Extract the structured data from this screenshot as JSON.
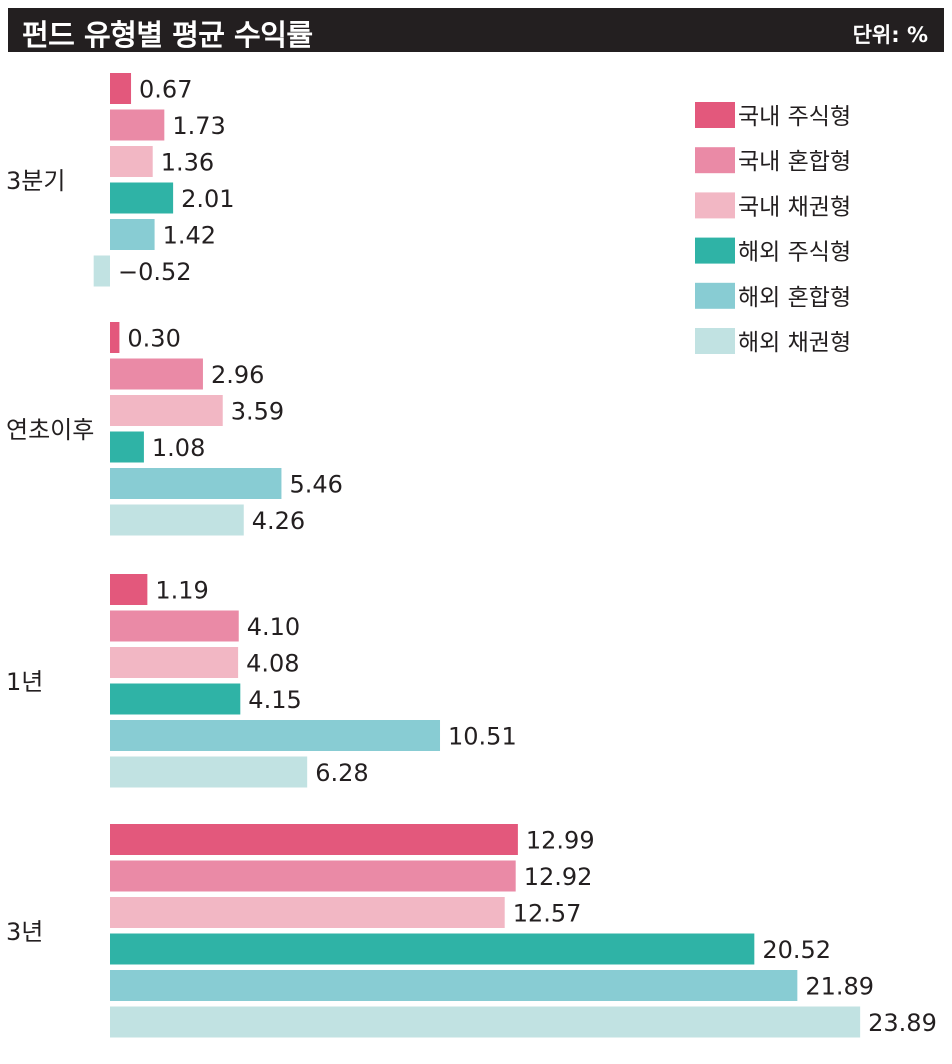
{
  "header": {
    "title": "펀드 유형별 평균 수익률",
    "unit": "단위: %"
  },
  "chart_data": {
    "type": "bar",
    "orientation": "horizontal",
    "title": "펀드 유형별 평균 수익률",
    "unit": "단위: %",
    "categories": [
      "3분기",
      "연초이후",
      "1년",
      "3년"
    ],
    "series": [
      {
        "name": "국내 주식형",
        "color": "#e3587c",
        "values": [
          0.67,
          0.3,
          1.19,
          12.99
        ],
        "labels": [
          "0.67",
          "0.30",
          "1.19",
          "12.99"
        ]
      },
      {
        "name": "국내 혼합형",
        "color": "#ea8aa6",
        "values": [
          1.73,
          2.96,
          4.1,
          12.92
        ],
        "labels": [
          "1.73",
          "2.96",
          "4.10",
          "12.92"
        ]
      },
      {
        "name": "국내 채권형",
        "color": "#f2b7c4",
        "values": [
          1.36,
          3.59,
          4.08,
          12.57
        ],
        "labels": [
          "1.36",
          "3.59",
          "4.08",
          "12.57"
        ]
      },
      {
        "name": "해외 주식형",
        "color": "#2fb3a6",
        "values": [
          2.01,
          1.08,
          4.15,
          20.52
        ],
        "labels": [
          "2.01",
          "1.08",
          "4.15",
          "20.52"
        ]
      },
      {
        "name": "해외 혼합형",
        "color": "#88ccd3",
        "values": [
          1.42,
          5.46,
          10.51,
          21.89
        ],
        "labels": [
          "1.42",
          "5.46",
          "10.51",
          "21.89"
        ]
      },
      {
        "name": "해외 채권형",
        "color": "#c1e2e2",
        "values": [
          -0.52,
          4.26,
          6.28,
          23.89
        ],
        "labels": [
          "−0.52",
          "4.26",
          "6.28",
          "23.89"
        ]
      }
    ],
    "legend_position": "top-right",
    "grid": false
  }
}
